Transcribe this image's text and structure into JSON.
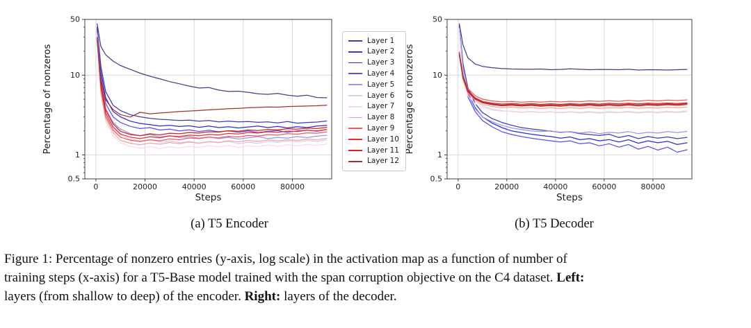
{
  "figure": {
    "subcaption_a": "(a) T5 Encoder",
    "subcaption_b": "(b) T5 Decoder"
  },
  "legend": {
    "items": [
      {
        "label": "Layer 1",
        "color": "#3f3f8c"
      },
      {
        "label": "Layer 2",
        "color": "#3c3cb4"
      },
      {
        "label": "Layer 3",
        "color": "#2b2bd5"
      },
      {
        "label": "Layer 4",
        "color": "#5252ef"
      },
      {
        "label": "Layer 5",
        "color": "#9595f3"
      },
      {
        "label": "Layer 6",
        "color": "#cfcff8"
      },
      {
        "label": "Layer 7",
        "color": "#fbd9d9"
      },
      {
        "label": "Layer 8",
        "color": "#f6a3a3"
      },
      {
        "label": "Layer 9",
        "color": "#ee5a5a"
      },
      {
        "label": "Layer 10",
        "color": "#e63030"
      },
      {
        "label": "Layer 11",
        "color": "#d21f1f"
      },
      {
        "label": "Layer 12",
        "color": "#a23232"
      }
    ]
  },
  "chart_data": [
    {
      "type": "line",
      "title": "(a) T5 Encoder",
      "xlabel": "Steps",
      "ylabel": "Percentage of nonzeros",
      "yscale": "log",
      "grid": true,
      "legend_position": "right-of-axes",
      "xlim": [
        -4500,
        96000
      ],
      "ylim": [
        0.5,
        50
      ],
      "xticks": [
        {
          "v": 0,
          "label": "0"
        },
        {
          "v": 20000,
          "label": "20000"
        },
        {
          "v": 40000,
          "label": "40000"
        },
        {
          "v": 60000,
          "label": "60000"
        },
        {
          "v": 80000,
          "label": "80000"
        }
      ],
      "yticks": [
        {
          "v": 50,
          "label": "50"
        },
        {
          "v": 10,
          "label": "10"
        },
        {
          "v": 1,
          "label": "1"
        },
        {
          "v": 0.5,
          "label": "0.5"
        }
      ],
      "x": [
        500,
        2000,
        4000,
        7000,
        10000,
        14000,
        18000,
        22000,
        26000,
        30000,
        34000,
        38000,
        42000,
        46000,
        50000,
        54000,
        58000,
        62000,
        66000,
        70000,
        74000,
        78000,
        82000,
        86000,
        90000,
        94000
      ],
      "series": [
        {
          "name": "Layer 1",
          "values": [
            44,
            23,
            18,
            15,
            13.2,
            11.8,
            10.6,
            9.7,
            9.0,
            8.3,
            7.8,
            7.3,
            6.9,
            7.0,
            6.5,
            6.25,
            6.3,
            6.1,
            5.85,
            5.75,
            5.9,
            5.6,
            5.45,
            5.6,
            5.25,
            5.2
          ]
        },
        {
          "name": "Layer 2",
          "values": [
            40,
            13,
            6.2,
            4.2,
            3.6,
            3.2,
            3.0,
            2.88,
            2.8,
            2.76,
            2.7,
            2.73,
            2.65,
            2.7,
            2.6,
            2.65,
            2.6,
            2.62,
            2.56,
            2.6,
            2.52,
            2.62,
            2.5,
            2.55,
            2.58,
            2.66
          ]
        },
        {
          "name": "Layer 3",
          "values": [
            38,
            11,
            5.2,
            3.5,
            3.0,
            2.65,
            2.48,
            2.4,
            2.3,
            2.35,
            2.27,
            2.32,
            2.22,
            2.3,
            2.2,
            2.26,
            2.18,
            2.24,
            2.3,
            2.2,
            2.28,
            2.18,
            2.26,
            2.2,
            2.3,
            2.35
          ]
        },
        {
          "name": "Layer 4",
          "values": [
            36,
            9.5,
            4.4,
            3.0,
            2.55,
            2.28,
            2.14,
            2.2,
            2.05,
            2.1,
            2.0,
            2.06,
            1.96,
            2.04,
            1.95,
            2.0,
            1.92,
            2.0,
            1.9,
            1.98,
            2.02,
            1.92,
            2.0,
            2.04,
            1.98,
            2.08
          ]
        },
        {
          "name": "Layer 5",
          "values": [
            34,
            8.2,
            3.8,
            2.55,
            2.1,
            1.85,
            1.74,
            1.8,
            1.68,
            1.74,
            1.65,
            1.7,
            1.62,
            1.68,
            1.6,
            1.66,
            1.58,
            1.64,
            1.7,
            1.6,
            1.66,
            1.62,
            1.7,
            1.65,
            1.72,
            1.76
          ]
        },
        {
          "name": "Layer 6",
          "values": [
            32,
            7.2,
            3.2,
            2.15,
            1.78,
            1.58,
            1.5,
            1.55,
            1.45,
            1.5,
            1.42,
            1.48,
            1.4,
            1.46,
            1.42,
            1.48,
            1.38,
            1.44,
            1.4,
            1.48,
            1.44,
            1.5,
            1.46,
            1.52,
            1.48,
            1.54
          ]
        },
        {
          "name": "Layer 7",
          "values": [
            27,
            5.8,
            2.6,
            1.75,
            1.42,
            1.28,
            1.21,
            1.27,
            1.2,
            1.26,
            1.22,
            1.28,
            1.24,
            1.3,
            1.26,
            1.31,
            1.24,
            1.3,
            1.27,
            1.33,
            1.28,
            1.34,
            1.3,
            1.35,
            1.32,
            1.37
          ]
        },
        {
          "name": "Layer 8",
          "values": [
            28,
            6.3,
            2.85,
            1.9,
            1.52,
            1.4,
            1.34,
            1.41,
            1.36,
            1.43,
            1.38,
            1.45,
            1.4,
            1.47,
            1.44,
            1.5,
            1.46,
            1.52,
            1.48,
            1.54,
            1.5,
            1.55,
            1.52,
            1.58,
            1.55,
            1.61
          ]
        },
        {
          "name": "Layer 9",
          "values": [
            29,
            6.8,
            3.05,
            2.05,
            1.67,
            1.53,
            1.47,
            1.55,
            1.5,
            1.59,
            1.55,
            1.63,
            1.6,
            1.67,
            1.64,
            1.71,
            1.68,
            1.75,
            1.72,
            1.8,
            1.77,
            1.85,
            1.82,
            1.89,
            1.87,
            1.94
          ]
        },
        {
          "name": "Layer 10",
          "values": [
            30,
            7.5,
            3.35,
            2.25,
            1.83,
            1.67,
            1.6,
            1.69,
            1.64,
            1.73,
            1.7,
            1.77,
            1.74,
            1.81,
            1.78,
            1.86,
            1.83,
            1.91,
            1.88,
            1.95,
            1.92,
            1.99,
            1.96,
            2.04,
            2.0,
            2.09
          ]
        },
        {
          "name": "Layer 11",
          "values": [
            29,
            8.0,
            3.65,
            2.45,
            1.98,
            1.8,
            1.74,
            1.84,
            1.78,
            1.87,
            1.84,
            1.91,
            1.88,
            1.95,
            1.93,
            2.01,
            1.98,
            2.05,
            2.02,
            2.09,
            2.06,
            2.13,
            2.1,
            2.17,
            2.14,
            2.22
          ]
        },
        {
          "name": "Layer 12",
          "values": [
            28,
            8.8,
            4.9,
            3.7,
            3.2,
            2.98,
            3.42,
            3.28,
            3.35,
            3.42,
            3.5,
            3.55,
            3.6,
            3.67,
            3.73,
            3.79,
            3.84,
            3.9,
            3.94,
            3.99,
            3.97,
            4.04,
            4.07,
            4.1,
            4.13,
            4.2
          ]
        }
      ]
    },
    {
      "type": "line",
      "title": "(b) T5 Decoder",
      "xlabel": "Steps",
      "ylabel": "Percentage of nonzeros",
      "yscale": "log",
      "grid": true,
      "xlim": [
        -4500,
        96000
      ],
      "ylim": [
        0.5,
        50
      ],
      "xticks": [
        {
          "v": 0,
          "label": "0"
        },
        {
          "v": 20000,
          "label": "20000"
        },
        {
          "v": 40000,
          "label": "40000"
        },
        {
          "v": 60000,
          "label": "60000"
        },
        {
          "v": 80000,
          "label": "80000"
        }
      ],
      "yticks": [
        {
          "v": 50,
          "label": "50"
        },
        {
          "v": 10,
          "label": "10"
        },
        {
          "v": 1,
          "label": "1"
        },
        {
          "v": 0.5,
          "label": "0.5"
        }
      ],
      "x": [
        500,
        2000,
        4000,
        7000,
        10000,
        14000,
        18000,
        22000,
        26000,
        30000,
        34000,
        38000,
        42000,
        46000,
        50000,
        54000,
        58000,
        62000,
        66000,
        70000,
        74000,
        78000,
        82000,
        86000,
        90000,
        94000
      ],
      "series": [
        {
          "name": "Layer 1",
          "values": [
            44,
            24,
            16.5,
            13.8,
            12.9,
            12.4,
            12.1,
            11.95,
            11.9,
            11.85,
            11.95,
            11.7,
            11.8,
            12.0,
            11.85,
            11.7,
            11.8,
            11.75,
            11.7,
            11.85,
            11.6,
            11.7,
            11.68,
            11.6,
            11.7,
            11.8
          ]
        },
        {
          "name": "Layer 2",
          "values": [
            42,
            14,
            7.0,
            4.4,
            3.4,
            2.85,
            2.55,
            2.35,
            2.2,
            2.12,
            2.05,
            1.98,
            1.92,
            1.95,
            1.85,
            1.8,
            1.75,
            1.82,
            1.65,
            1.75,
            1.6,
            1.7,
            1.62,
            1.68,
            1.6,
            1.66
          ]
        },
        {
          "name": "Layer 3",
          "values": [
            41,
            12,
            6.0,
            3.9,
            3.0,
            2.5,
            2.2,
            2.0,
            1.9,
            1.82,
            1.75,
            1.7,
            1.62,
            1.68,
            1.55,
            1.6,
            1.5,
            1.56,
            1.45,
            1.55,
            1.4,
            1.5,
            1.42,
            1.48,
            1.35,
            1.42
          ]
        },
        {
          "name": "Layer 4",
          "values": [
            40,
            11,
            5.4,
            3.5,
            2.7,
            2.25,
            1.95,
            1.8,
            1.7,
            1.62,
            1.56,
            1.5,
            1.45,
            1.5,
            1.38,
            1.42,
            1.3,
            1.38,
            1.25,
            1.35,
            1.18,
            1.28,
            1.15,
            1.25,
            1.08,
            1.16
          ]
        },
        {
          "name": "Layer 5",
          "values": [
            39,
            10.5,
            5.8,
            3.8,
            3.0,
            2.6,
            2.35,
            2.18,
            2.08,
            2.0,
            1.96,
            2.0,
            1.9,
            1.96,
            1.88,
            1.94,
            1.85,
            1.92,
            1.88,
            1.96,
            1.85,
            1.92,
            1.88,
            1.96,
            1.9,
            1.97
          ]
        },
        {
          "name": "Layer 6",
          "values": [
            38,
            11.5,
            6.5,
            4.8,
            4.1,
            3.75,
            3.58,
            3.5,
            3.42,
            3.48,
            3.4,
            3.46,
            3.38,
            3.45,
            3.36,
            3.44,
            3.35,
            3.42,
            3.38,
            3.46,
            3.36,
            3.44,
            3.38,
            3.46,
            3.4,
            3.48
          ]
        },
        {
          "name": "Layer 7",
          "values": [
            18,
            8.5,
            5.5,
            4.4,
            3.9,
            3.66,
            3.52,
            3.56,
            3.46,
            3.52,
            3.44,
            3.5,
            3.42,
            3.5,
            3.44,
            3.52,
            3.42,
            3.5,
            3.44,
            3.54,
            3.44,
            3.52,
            3.46,
            3.54,
            3.48,
            3.56
          ]
        },
        {
          "name": "Layer 8",
          "values": [
            18.5,
            9.0,
            6.0,
            4.8,
            4.3,
            4.05,
            3.9,
            3.96,
            3.86,
            3.92,
            3.84,
            3.9,
            3.82,
            3.9,
            3.84,
            3.92,
            3.82,
            3.9,
            3.86,
            3.94,
            3.84,
            3.92,
            3.88,
            3.96,
            3.9,
            3.98
          ]
        },
        {
          "name": "Layer 9",
          "values": [
            19.5,
            10,
            6.8,
            5.5,
            5.0,
            4.75,
            4.62,
            4.68,
            4.58,
            4.66,
            4.6,
            4.68,
            4.62,
            4.7,
            4.66,
            4.76,
            4.68,
            4.78,
            4.7,
            4.82,
            4.72,
            4.84,
            4.76,
            4.86,
            4.8,
            4.9
          ]
        },
        {
          "name": "Layer 10",
          "values": [
            19,
            9.6,
            6.5,
            5.2,
            4.7,
            4.46,
            4.35,
            4.42,
            4.32,
            4.4,
            4.3,
            4.38,
            4.3,
            4.4,
            4.32,
            4.42,
            4.34,
            4.44,
            4.36,
            4.46,
            4.36,
            4.46,
            4.4,
            4.48,
            4.42,
            4.5
          ]
        },
        {
          "name": "Layer 11",
          "values": [
            18.5,
            9.2,
            6.2,
            5.0,
            4.5,
            4.26,
            4.13,
            4.2,
            4.1,
            4.18,
            4.08,
            4.16,
            4.08,
            4.18,
            4.1,
            4.2,
            4.1,
            4.2,
            4.12,
            4.22,
            4.12,
            4.22,
            4.16,
            4.26,
            4.18,
            4.28
          ]
        },
        {
          "name": "Layer 12",
          "values": [
            18,
            9.4,
            6.4,
            5.1,
            4.6,
            4.36,
            4.22,
            4.3,
            4.2,
            4.28,
            4.18,
            4.26,
            4.2,
            4.3,
            4.22,
            4.32,
            4.22,
            4.32,
            4.24,
            4.34,
            4.24,
            4.34,
            4.28,
            4.36,
            4.3,
            4.4
          ]
        }
      ]
    }
  ],
  "caption": {
    "lines": [
      [
        {
          "t": "Figure 1: Percentage of nonzero entries (y-axis, log scale) in the activation map as a function of number of",
          "b": false
        }
      ],
      [
        {
          "t": "training steps (x-axis) for a T5-Base model trained with the span corruption objective on the C4 dataset. ",
          "b": false
        },
        {
          "t": "Left:",
          "b": true
        }
      ],
      [
        {
          "t": "layers (from shallow to deep) of the encoder. ",
          "b": false
        },
        {
          "t": "Right:",
          "b": true
        },
        {
          "t": " layers of the decoder.",
          "b": false
        }
      ]
    ]
  }
}
